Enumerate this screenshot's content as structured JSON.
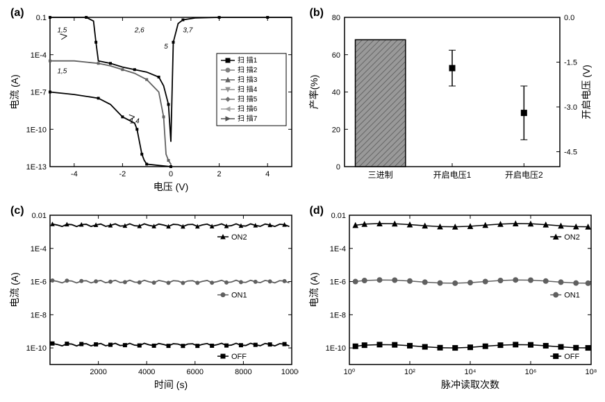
{
  "panel_a": {
    "label": "(a)",
    "type": "line-scatter-log",
    "xlabel": "电压 (V)",
    "ylabel": "电流 (A)",
    "xlim": [
      -5,
      5
    ],
    "ylim_exp": [
      -13,
      -1
    ],
    "xtick_step": 2,
    "ytick_exp_step": 3,
    "ytick_labels": [
      "1E-13",
      "1E-10",
      "1E-7",
      "1E-4",
      "0.1"
    ],
    "label_fontsize": 14,
    "tick_fontsize": 11,
    "background_color": "#ffffff",
    "axis_color": "#000000",
    "legend": {
      "items": [
        "扫    描1",
        "扫    描2",
        "扫    描3",
        "扫    描4",
        "扫    描5",
        "扫    描6",
        "扫    描7"
      ],
      "markers": [
        "square",
        "circle",
        "triangle-up",
        "triangle-down",
        "diamond",
        "triangle-left",
        "triangle-right"
      ],
      "colors": [
        "#000000",
        "#808080",
        "#606060",
        "#909090",
        "#707070",
        "#a0a0a0",
        "#505050"
      ],
      "fontsize": 10,
      "box_color": "#000000"
    },
    "annotations": [
      {
        "text": "1,5",
        "x": -4.5,
        "y_exp": -2.2
      },
      {
        "text": "2,6",
        "x": -1.3,
        "y_exp": -2.2
      },
      {
        "text": "3,7",
        "x": 0.7,
        "y_exp": -2.2
      },
      {
        "text": "5",
        "x": -0.2,
        "y_exp": -3.5
      },
      {
        "text": "1,5",
        "x": -4.5,
        "y_exp": -5.5
      },
      {
        "text": "1,4",
        "x": -1.5,
        "y_exp": -9.5
      }
    ],
    "upper_curve": {
      "color": "#000000",
      "points": [
        [
          -5,
          -1
        ],
        [
          -4,
          -1
        ],
        [
          -3.5,
          -1
        ],
        [
          -3.2,
          -1.3
        ],
        [
          -3.1,
          -3
        ],
        [
          -3.0,
          -4.5
        ],
        [
          -2.5,
          -4.7
        ],
        [
          -2,
          -5
        ],
        [
          -1.5,
          -5.2
        ],
        [
          -1,
          -5.4
        ],
        [
          -0.5,
          -5.8
        ],
        [
          -0.3,
          -6.5
        ],
        [
          -0.1,
          -8
        ],
        [
          0,
          -11
        ],
        [
          0.1,
          -3
        ],
        [
          0.3,
          -1.5
        ],
        [
          0.5,
          -1.2
        ],
        [
          1,
          -1.05
        ],
        [
          2,
          -1
        ],
        [
          3,
          -1
        ],
        [
          4,
          -1
        ],
        [
          5,
          -1
        ]
      ]
    },
    "mid_curve": {
      "color": "#606060",
      "points": [
        [
          -5,
          -4.5
        ],
        [
          -4,
          -4.5
        ],
        [
          -3,
          -4.7
        ],
        [
          -2.5,
          -4.9
        ],
        [
          -2,
          -5.2
        ],
        [
          -1.5,
          -5.5
        ],
        [
          -1,
          -6
        ],
        [
          -0.5,
          -7
        ],
        [
          -0.3,
          -9
        ],
        [
          -0.2,
          -12
        ],
        [
          -0.1,
          -12.5
        ],
        [
          0,
          -12.8
        ]
      ]
    },
    "low_curve": {
      "color": "#000000",
      "points": [
        [
          -5,
          -7
        ],
        [
          -4,
          -7.2
        ],
        [
          -3,
          -7.5
        ],
        [
          -2.5,
          -8
        ],
        [
          -2,
          -9
        ],
        [
          -1.5,
          -9.5
        ],
        [
          -1.4,
          -10
        ],
        [
          -1.3,
          -11
        ],
        [
          -1.2,
          -12
        ],
        [
          -1.1,
          -12.5
        ],
        [
          -1.0,
          -12.8
        ],
        [
          -0.5,
          -12.9
        ],
        [
          0,
          -13
        ]
      ]
    },
    "arrows_color": "#000000"
  },
  "panel_b": {
    "label": "(b)",
    "type": "bar-with-points",
    "ylabel_left": "产率(%)",
    "ylabel_right": "开启电压 (V)",
    "categories": [
      "三进制",
      "开启电压1",
      "开启电压2"
    ],
    "ylim_left": [
      0,
      80
    ],
    "ytick_left_step": 20,
    "ylim_right": [
      -5.0,
      0.0
    ],
    "ytick_right_step": 1.5,
    "ytick_right_labels": [
      "0.0",
      "-1.5",
      "-3.0",
      "-4.5"
    ],
    "label_fontsize": 14,
    "tick_fontsize": 11,
    "bar": {
      "category_index": 0,
      "value": 68,
      "fill": "#999999",
      "stroke": "#000000",
      "hatch": "diagonal"
    },
    "points": [
      {
        "category_index": 1,
        "value_right": -1.7,
        "err": 0.6,
        "marker": "square",
        "color": "#000000"
      },
      {
        "category_index": 2,
        "value_right": -3.2,
        "err": 0.9,
        "marker": "square",
        "color": "#000000"
      }
    ],
    "background_color": "#ffffff",
    "axis_color": "#000000"
  },
  "panel_c": {
    "label": "(c)",
    "type": "line-scatter-loglin",
    "xlabel": "时间 (s)",
    "ylabel": "电流 (A)",
    "xlim": [
      0,
      10000
    ],
    "xtick_step": 2000,
    "ylim_exp": [
      -11,
      -2
    ],
    "ytick_exp_vals": [
      -10,
      -8,
      -6,
      -4,
      -2
    ],
    "ytick_labels": [
      "1E-10",
      "1E-8",
      "1E-6",
      "1E-4",
      "0.01"
    ],
    "label_fontsize": 14,
    "tick_fontsize": 11,
    "series": [
      {
        "name": "ON2",
        "marker": "triangle-up",
        "color": "#000000",
        "y_exp": -2.6,
        "label_x": 7500,
        "label_y_exp": -3.3
      },
      {
        "name": "ON1",
        "marker": "circle",
        "color": "#606060",
        "y_exp": -6.0,
        "label_x": 7500,
        "label_y_exp": -6.8
      },
      {
        "name": "OFF",
        "marker": "square",
        "color": "#000000",
        "y_exp": -9.8,
        "label_x": 7500,
        "label_y_exp": -10.5
      }
    ],
    "background_color": "#ffffff",
    "axis_color": "#000000"
  },
  "panel_d": {
    "label": "(d)",
    "type": "line-scatter-loglog",
    "xlabel": "脉冲读取次数",
    "ylabel": "电流 (A)",
    "xlim_exp": [
      0,
      8
    ],
    "xtick_exp_step": 2,
    "xtick_labels": [
      "10⁰",
      "10²",
      "10⁴",
      "10⁶",
      "10⁸"
    ],
    "ylim_exp": [
      -11,
      -2
    ],
    "ytick_exp_vals": [
      -10,
      -8,
      -6,
      -4,
      -2
    ],
    "ytick_labels": [
      "1E-10",
      "1E-8",
      "1E-6",
      "1E-4",
      "0.01"
    ],
    "label_fontsize": 14,
    "tick_fontsize": 11,
    "series": [
      {
        "name": "ON2",
        "marker": "triangle-up",
        "color": "#000000",
        "y_exp": -2.6,
        "label_x_exp": 7.2,
        "label_y_exp": -3.3
      },
      {
        "name": "ON1",
        "marker": "circle",
        "color": "#606060",
        "y_exp": -6.0,
        "label_x_exp": 7.2,
        "label_y_exp": -6.8
      },
      {
        "name": "OFF",
        "marker": "square",
        "color": "#000000",
        "y_exp": -9.9,
        "label_x_exp": 7.2,
        "label_y_exp": -10.5
      }
    ],
    "point_x_exps": [
      0.2,
      0.5,
      1,
      1.5,
      2,
      2.5,
      3,
      3.5,
      4,
      4.5,
      5,
      5.5,
      6,
      6.5,
      7,
      7.5,
      7.9
    ],
    "background_color": "#ffffff",
    "axis_color": "#000000"
  }
}
